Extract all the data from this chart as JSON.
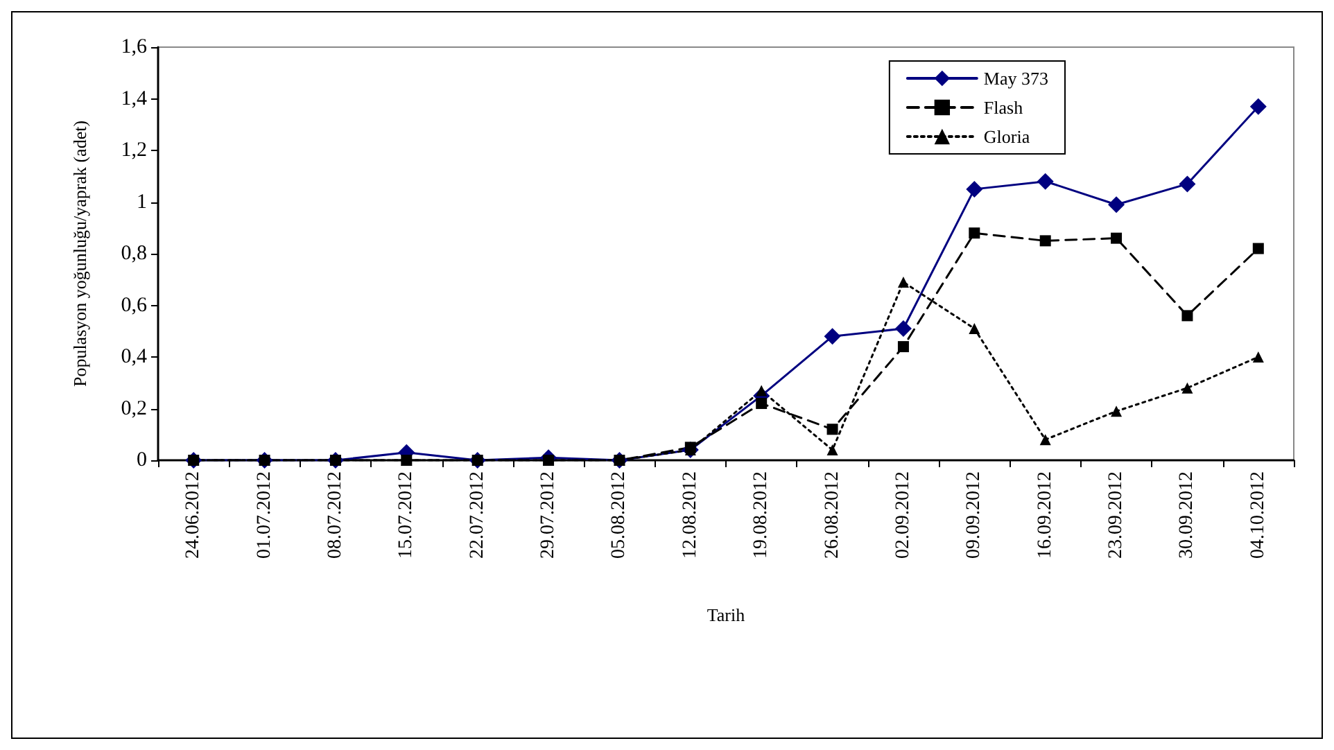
{
  "chart_data": {
    "type": "line",
    "xlabel": "Tarih",
    "ylabel": "Populasyon yoğunluğu/yaprak (adet)",
    "categories": [
      "24.06.2012",
      "01.07.2012",
      "08.07.2012",
      "15.07.2012",
      "22.07.2012",
      "29.07.2012",
      "05.08.2012",
      "12.08.2012",
      "19.08.2012",
      "26.08.2012",
      "02.09.2012",
      "09.09.2012",
      "16.09.2012",
      "23.09.2012",
      "30.09.2012",
      "04.10.2012"
    ],
    "series": [
      {
        "name": "May 373",
        "color": "#000080",
        "marker": "diamond",
        "line_style": "solid",
        "values": [
          0,
          0,
          0,
          0.03,
          0,
          0.01,
          0,
          0.04,
          0.25,
          0.48,
          0.51,
          1.05,
          1.08,
          0.99,
          1.07,
          1.37
        ]
      },
      {
        "name": "Flash",
        "color": "#000000",
        "marker": "square",
        "line_style": "dashed",
        "values": [
          0,
          0,
          0,
          0,
          0,
          0,
          0,
          0.05,
          0.22,
          0.12,
          0.44,
          0.88,
          0.85,
          0.86,
          0.56,
          0.82
        ]
      },
      {
        "name": "Gloria",
        "color": "#000000",
        "marker": "triangle",
        "line_style": "dotted",
        "values": [
          0,
          0,
          0,
          0,
          0,
          0,
          0,
          0.04,
          0.27,
          0.04,
          0.69,
          0.51,
          0.08,
          0.19,
          0.28,
          0.4
        ]
      }
    ],
    "ylim": [
      0,
      1.6
    ],
    "yticks": [
      0,
      {
        "value": 0.2,
        "label": "0,2"
      },
      {
        "value": 0.4,
        "label": "0,4"
      },
      {
        "value": 0.6,
        "label": "0,6"
      },
      {
        "value": 0.8,
        "label": "0,8"
      },
      1,
      {
        "value": 1.2,
        "label": "1,2"
      },
      {
        "value": 1.4,
        "label": "1,4"
      },
      {
        "value": 1.6,
        "label": "1,6"
      }
    ],
    "grid": false,
    "legend": "top right"
  }
}
